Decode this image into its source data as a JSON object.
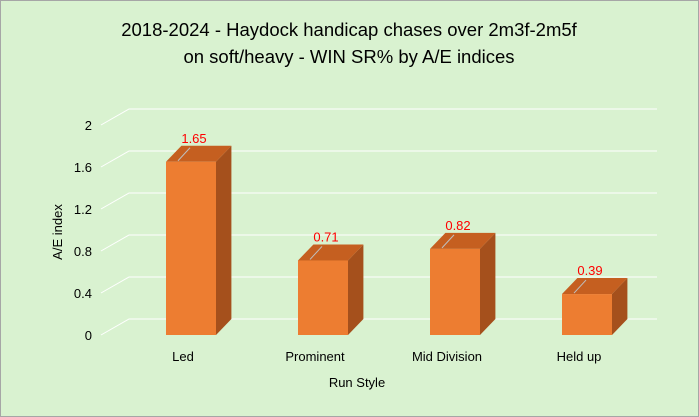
{
  "chart_data": {
    "type": "bar",
    "title_lines": [
      "2018-2024 - Haydock handicap chases over 2m3f-2m5f",
      "on soft/heavy - WIN SR% by A/E indices"
    ],
    "categories": [
      "Led",
      "Prominent",
      "Mid Division",
      "Held up"
    ],
    "values": [
      1.65,
      0.71,
      0.82,
      0.39
    ],
    "data_labels": [
      "1.65",
      "0.71",
      "0.82",
      "0.39"
    ],
    "xlabel": "Run Style",
    "ylabel": "A/E index",
    "ylim": [
      0,
      2
    ],
    "yticks": [
      "0",
      "0.4",
      "0.8",
      "1.2",
      "1.6",
      "2"
    ],
    "grid": true,
    "legend": "none",
    "style": "3d-columns",
    "colors": {
      "background": "#d9f2d0",
      "bar_front": "#ed7d31",
      "bar_side": "#a5501c",
      "bar_top": "#c55f20",
      "gridline": "#ffffff",
      "data_label": "#ff0000"
    }
  }
}
